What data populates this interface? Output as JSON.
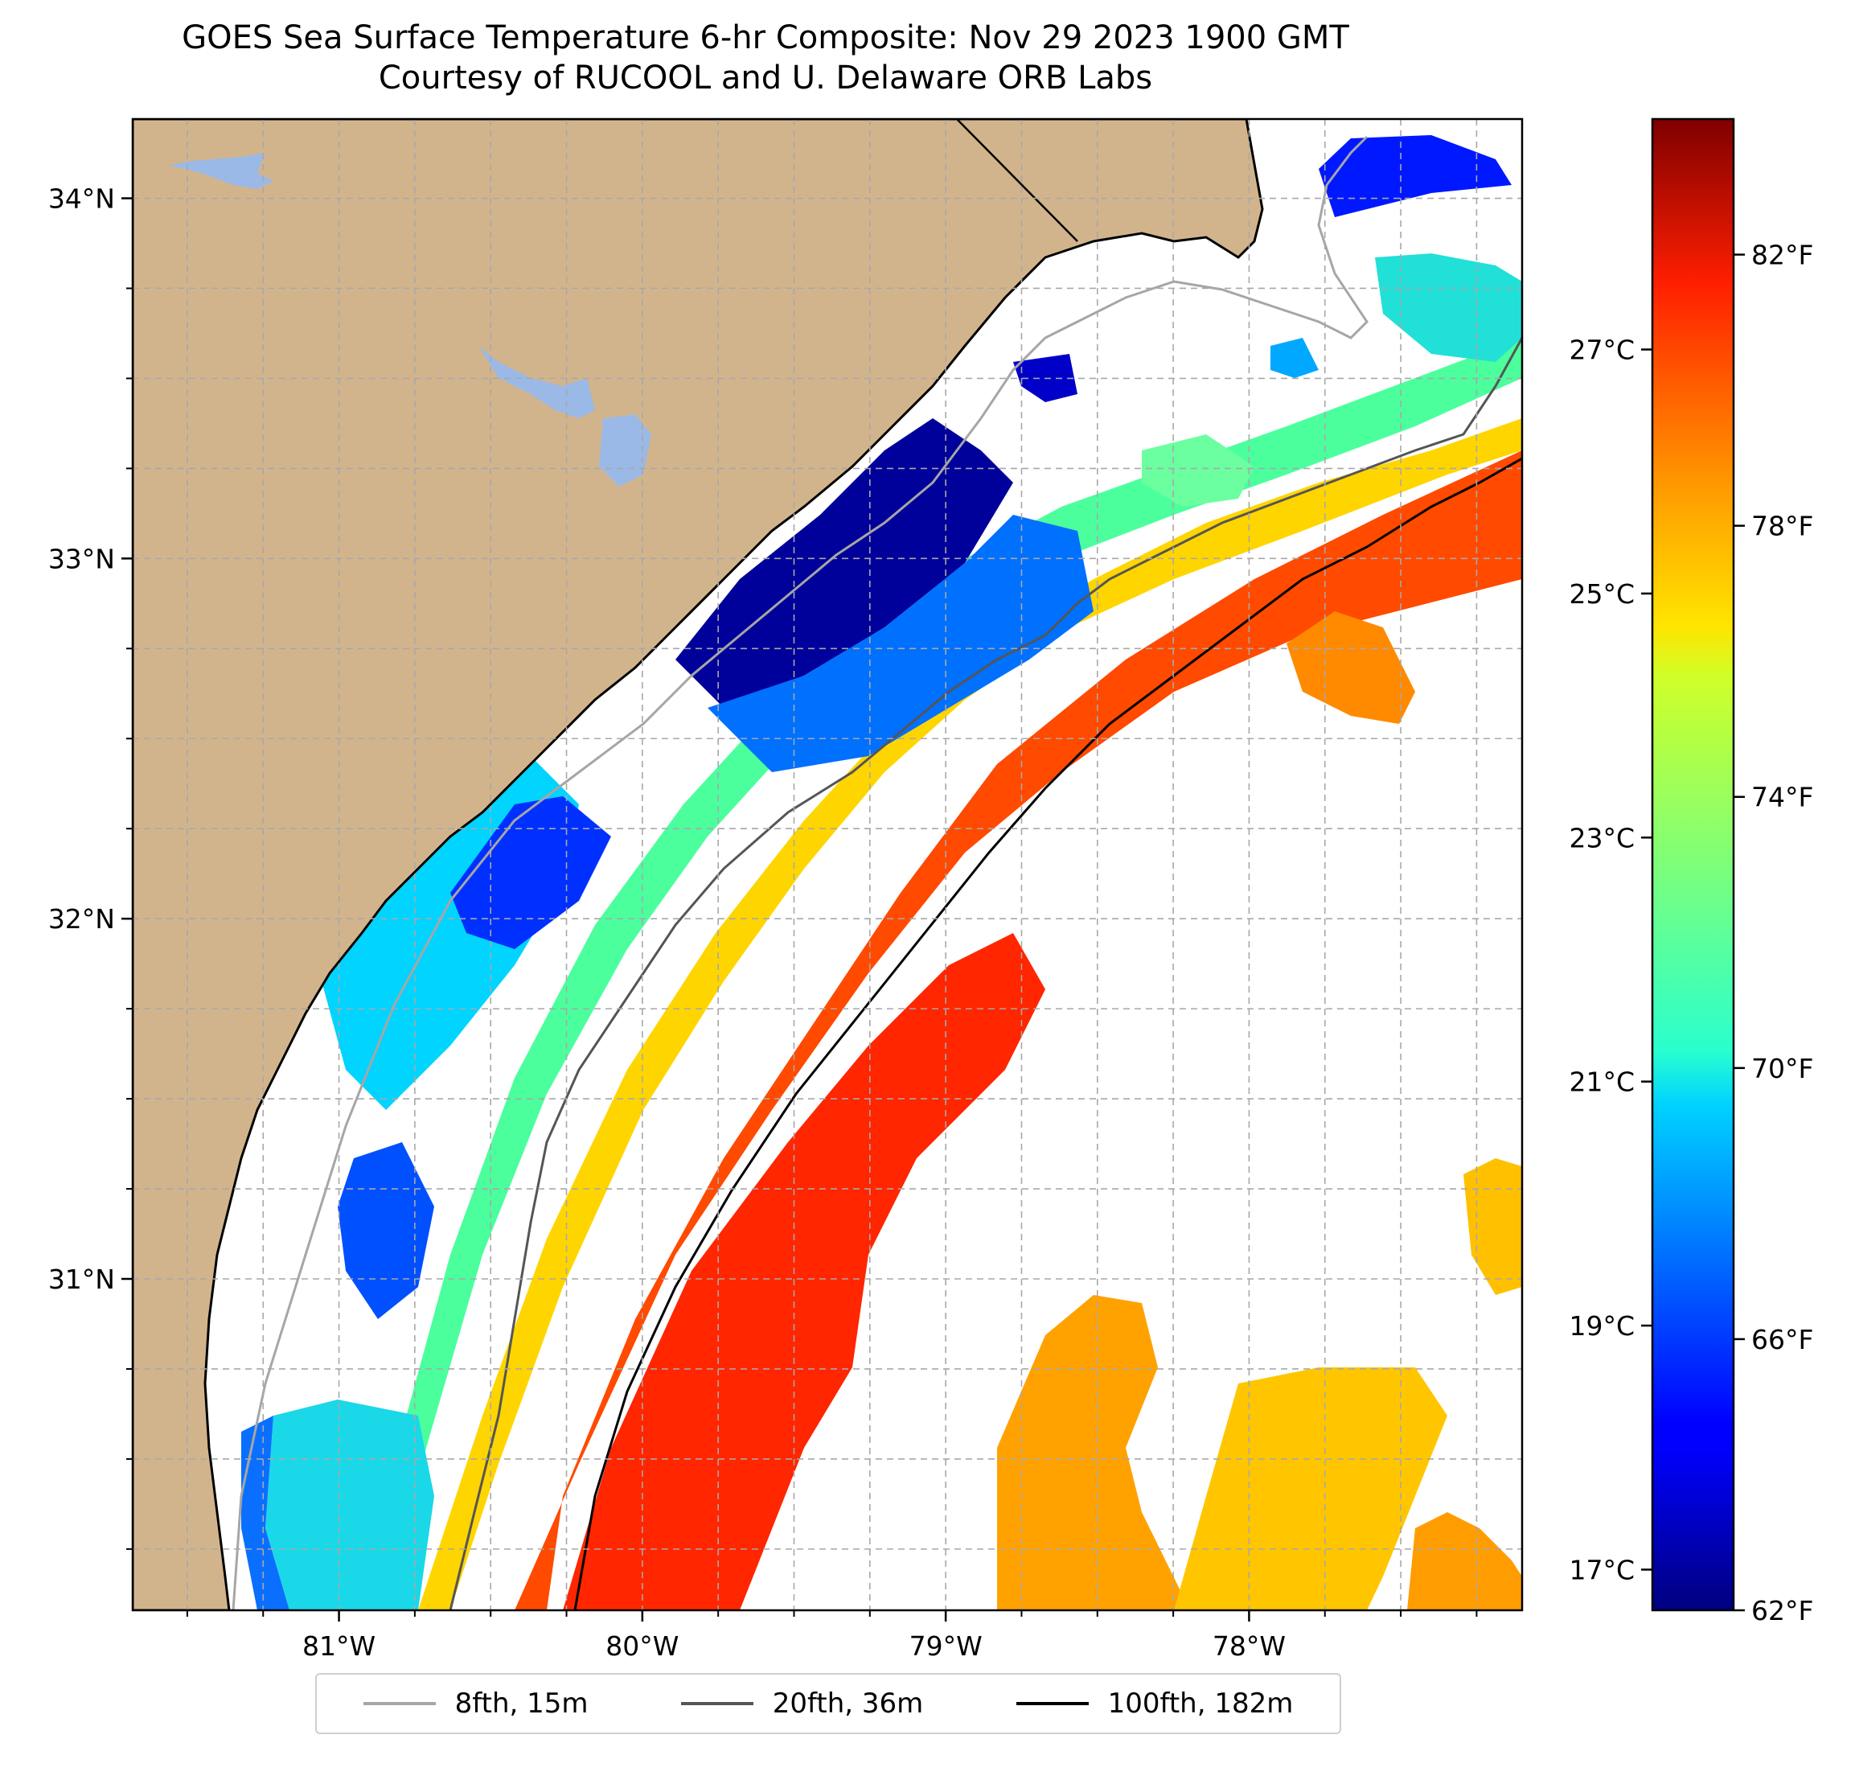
{
  "title": {
    "line1": "GOES Sea Surface Temperature 6-hr Composite: Nov 29 2023 1900 GMT",
    "line2": "Courtesy of RUCOOL and U. Delaware ORB Labs"
  },
  "map": {
    "lon_range": [
      -81.68,
      -77.1
    ],
    "lat_range": [
      30.08,
      34.22
    ],
    "lat_ticks": [
      {
        "value": 34,
        "label": "34°N"
      },
      {
        "value": 33,
        "label": "33°N"
      },
      {
        "value": 32,
        "label": "32°N"
      },
      {
        "value": 31,
        "label": "31°N"
      }
    ],
    "lon_ticks": [
      {
        "value": -81,
        "label": "81°W"
      },
      {
        "value": -80,
        "label": "80°W"
      },
      {
        "value": -79,
        "label": "79°W"
      },
      {
        "value": -78,
        "label": "78°W"
      }
    ],
    "gridlines": true,
    "land_color": "#d2b48c",
    "water_body_color": "#9bb9e6"
  },
  "colorbar": {
    "colormap": "jet",
    "f_range": [
      62,
      84
    ],
    "fahrenheit_ticks": [
      {
        "value": 82,
        "label": "82°F"
      },
      {
        "value": 78,
        "label": "78°F"
      },
      {
        "value": 74,
        "label": "74°F"
      },
      {
        "value": 70,
        "label": "70°F"
      },
      {
        "value": 66,
        "label": "66°F"
      },
      {
        "value": 62,
        "label": "62°F"
      }
    ],
    "celsius_ticks": [
      {
        "value": 27,
        "label": "27°C"
      },
      {
        "value": 25,
        "label": "25°C"
      },
      {
        "value": 23,
        "label": "23°C"
      },
      {
        "value": 21,
        "label": "21°C"
      },
      {
        "value": 19,
        "label": "19°C"
      },
      {
        "value": 17,
        "label": "17°C"
      }
    ]
  },
  "legend": {
    "placement": "bottom-center",
    "items": [
      {
        "label": "8fth, 15m",
        "color": "#a6a6a6"
      },
      {
        "label": "20fth, 36m",
        "color": "#555555"
      },
      {
        "label": "100fth, 182m",
        "color": "#000000"
      }
    ]
  }
}
